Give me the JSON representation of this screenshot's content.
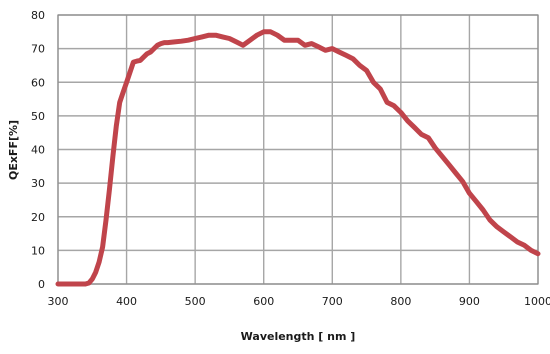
{
  "chart_data": {
    "type": "line",
    "title": "",
    "xlabel": "Wavelength  [ nm ]",
    "ylabel": "QExFF[%]",
    "xlim": [
      300,
      1000
    ],
    "ylim": [
      0,
      80
    ],
    "x_ticks": [
      300,
      400,
      500,
      600,
      700,
      800,
      900,
      1000
    ],
    "y_ticks": [
      0,
      10,
      20,
      30,
      40,
      50,
      60,
      70,
      80
    ],
    "grid": true,
    "legend": "none",
    "colors": {
      "line": "#c0444b",
      "grid": "#a6a6a6",
      "frame": "#8c8c8c"
    },
    "series": [
      {
        "x": [
          300,
          340,
          345,
          350,
          355,
          360,
          365,
          370,
          375,
          380,
          385,
          390,
          395,
          400,
          405,
          410,
          415,
          420,
          425,
          430,
          435,
          440,
          445,
          450,
          455,
          460,
          470,
          480,
          490,
          500,
          510,
          520,
          530,
          540,
          550,
          560,
          570,
          580,
          590,
          600,
          610,
          620,
          630,
          640,
          650,
          660,
          670,
          680,
          690,
          700,
          710,
          720,
          730,
          740,
          750,
          760,
          770,
          780,
          790,
          800,
          810,
          820,
          830,
          840,
          850,
          860,
          870,
          880,
          890,
          900,
          910,
          920,
          930,
          940,
          950,
          960,
          970,
          980,
          990,
          1000
        ],
        "y": [
          0,
          0,
          0.3,
          1.5,
          3.5,
          6.5,
          11,
          19,
          28,
          38,
          47,
          54,
          57,
          60,
          63,
          66,
          66.3,
          66.5,
          67.5,
          68.5,
          69,
          70,
          71,
          71.5,
          71.8,
          71.8,
          72,
          72.2,
          72.5,
          73,
          73.5,
          74,
          74,
          73.5,
          73,
          72,
          71,
          72.5,
          74,
          75,
          75,
          74,
          72.5,
          72.5,
          72.5,
          71,
          71.5,
          70.5,
          69.5,
          70,
          69,
          68,
          67,
          65,
          63.5,
          60,
          58,
          54,
          53,
          51,
          48.5,
          46.5,
          44.5,
          43.5,
          40.5,
          38,
          35.5,
          33,
          30.5,
          27,
          24.5,
          22,
          19,
          17,
          15.5,
          14,
          12.5,
          11.5,
          10,
          9
        ]
      }
    ]
  }
}
